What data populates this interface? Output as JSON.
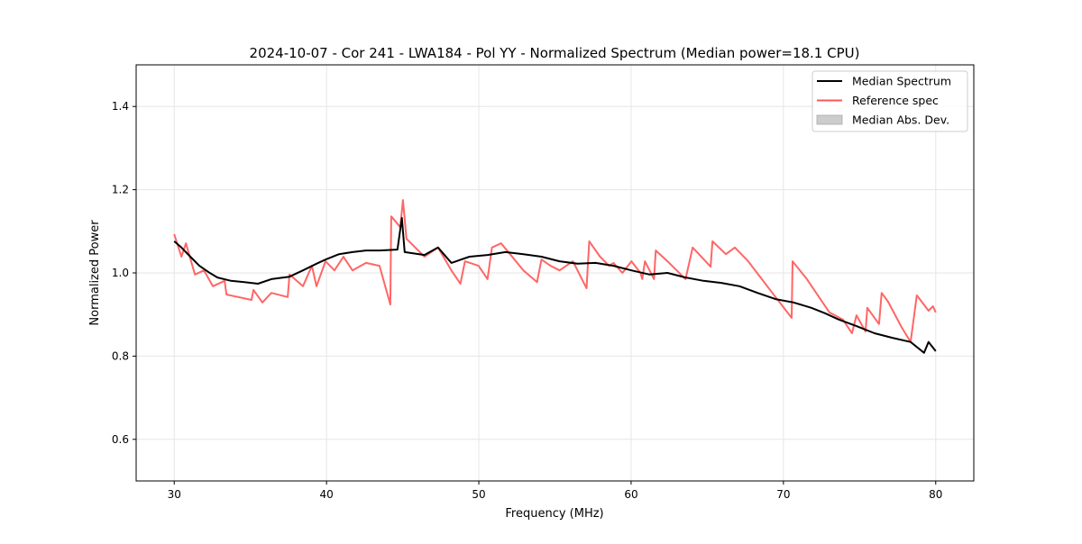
{
  "chart_data": {
    "type": "line",
    "title": "2024-10-07 - Cor 241 - LWA184 - Pol YY - Normalized Spectrum (Median power=18.1 CPU)",
    "xlabel": "Frequency (MHz)",
    "ylabel": "Normalized Power",
    "xlim": [
      27.5,
      82.5
    ],
    "ylim": [
      0.5,
      1.5
    ],
    "xticks": [
      30,
      40,
      50,
      60,
      70,
      80
    ],
    "xtick_labels": [
      "30",
      "40",
      "50",
      "60",
      "70",
      "80"
    ],
    "yticks": [
      0.6,
      0.8,
      1.0,
      1.2,
      1.4
    ],
    "ytick_labels": [
      "0.6",
      "0.8",
      "1.0",
      "1.2",
      "1.4"
    ],
    "grid": true,
    "legend_position": "top-right",
    "legend": [
      {
        "label": "Median Spectrum",
        "kind": "line",
        "color": "#000000"
      },
      {
        "label": "Reference spec",
        "kind": "line",
        "color": "#ff5555"
      },
      {
        "label": "Median Abs. Dev.",
        "kind": "patch",
        "color": "#cccccc"
      }
    ],
    "series": [
      {
        "name": "Median Spectrum",
        "color": "#000000",
        "x": [
          30.0,
          30.47,
          31.06,
          31.65,
          32.25,
          32.84,
          33.72,
          34.61,
          35.5,
          36.38,
          37.57,
          38.45,
          39.34,
          39.93,
          40.82,
          41.7,
          42.59,
          43.48,
          44.66,
          44.95,
          45.13,
          46.43,
          47.32,
          48.2,
          49.39,
          50.57,
          51.75,
          52.93,
          54.11,
          55.3,
          56.48,
          57.66,
          58.84,
          60.02,
          61.21,
          62.39,
          63.57,
          64.75,
          65.93,
          67.12,
          68.3,
          69.48,
          70.66,
          71.84,
          72.73,
          73.62,
          74.8,
          75.98,
          77.16,
          78.35,
          79.23,
          79.53,
          80.0
        ],
        "y": [
          1.076,
          1.061,
          1.039,
          1.017,
          1.002,
          0.989,
          0.981,
          0.978,
          0.974,
          0.985,
          0.991,
          1.006,
          1.022,
          1.032,
          1.045,
          1.05,
          1.054,
          1.054,
          1.056,
          1.132,
          1.05,
          1.043,
          1.061,
          1.024,
          1.039,
          1.043,
          1.05,
          1.045,
          1.039,
          1.028,
          1.022,
          1.024,
          1.017,
          1.006,
          0.996,
          1.0,
          0.989,
          0.981,
          0.976,
          0.968,
          0.952,
          0.937,
          0.929,
          0.916,
          0.903,
          0.888,
          0.872,
          0.855,
          0.844,
          0.834,
          0.808,
          0.834,
          0.812
        ]
      },
      {
        "name": "Reference spec",
        "color": "#ff5555",
        "x": [
          30.0,
          30.47,
          30.77,
          31.36,
          31.95,
          32.54,
          33.31,
          33.43,
          35.08,
          35.2,
          35.79,
          36.38,
          37.45,
          37.57,
          38.45,
          39.04,
          39.34,
          39.93,
          40.52,
          41.11,
          41.7,
          42.59,
          43.48,
          44.19,
          44.25,
          44.84,
          45.02,
          45.25,
          46.43,
          47.32,
          48.2,
          48.79,
          49.09,
          49.98,
          50.57,
          50.86,
          51.46,
          52.05,
          52.93,
          53.82,
          54.11,
          54.71,
          55.3,
          56.18,
          57.07,
          57.25,
          57.96,
          58.55,
          58.84,
          59.43,
          60.02,
          60.61,
          60.73,
          60.91,
          61.5,
          61.62,
          62.39,
          63.57,
          64.04,
          65.22,
          65.34,
          66.22,
          66.81,
          67.69,
          69.48,
          70.54,
          70.6,
          71.54,
          73.02,
          73.9,
          74.5,
          74.8,
          75.39,
          75.51,
          76.28,
          76.45,
          76.87,
          77.75,
          78.35,
          78.76,
          79.53,
          79.82,
          80.0
        ],
        "y": [
          1.093,
          1.039,
          1.071,
          0.996,
          1.006,
          0.968,
          0.981,
          0.948,
          0.935,
          0.959,
          0.929,
          0.952,
          0.942,
          0.996,
          0.968,
          1.017,
          0.968,
          1.028,
          1.006,
          1.039,
          1.006,
          1.024,
          1.017,
          0.924,
          1.136,
          1.11,
          1.175,
          1.082,
          1.039,
          1.061,
          1.006,
          0.974,
          1.028,
          1.017,
          0.985,
          1.061,
          1.071,
          1.045,
          1.006,
          0.978,
          1.032,
          1.017,
          1.006,
          1.028,
          0.963,
          1.076,
          1.039,
          1.017,
          1.024,
          1.0,
          1.028,
          1.0,
          0.985,
          1.028,
          0.985,
          1.054,
          1.028,
          0.985,
          1.061,
          1.015,
          1.076,
          1.045,
          1.061,
          1.028,
          0.942,
          0.892,
          1.028,
          0.985,
          0.905,
          0.888,
          0.855,
          0.898,
          0.859,
          0.916,
          0.877,
          0.952,
          0.931,
          0.87,
          0.834,
          0.946,
          0.909,
          0.92,
          0.905
        ]
      }
    ]
  }
}
